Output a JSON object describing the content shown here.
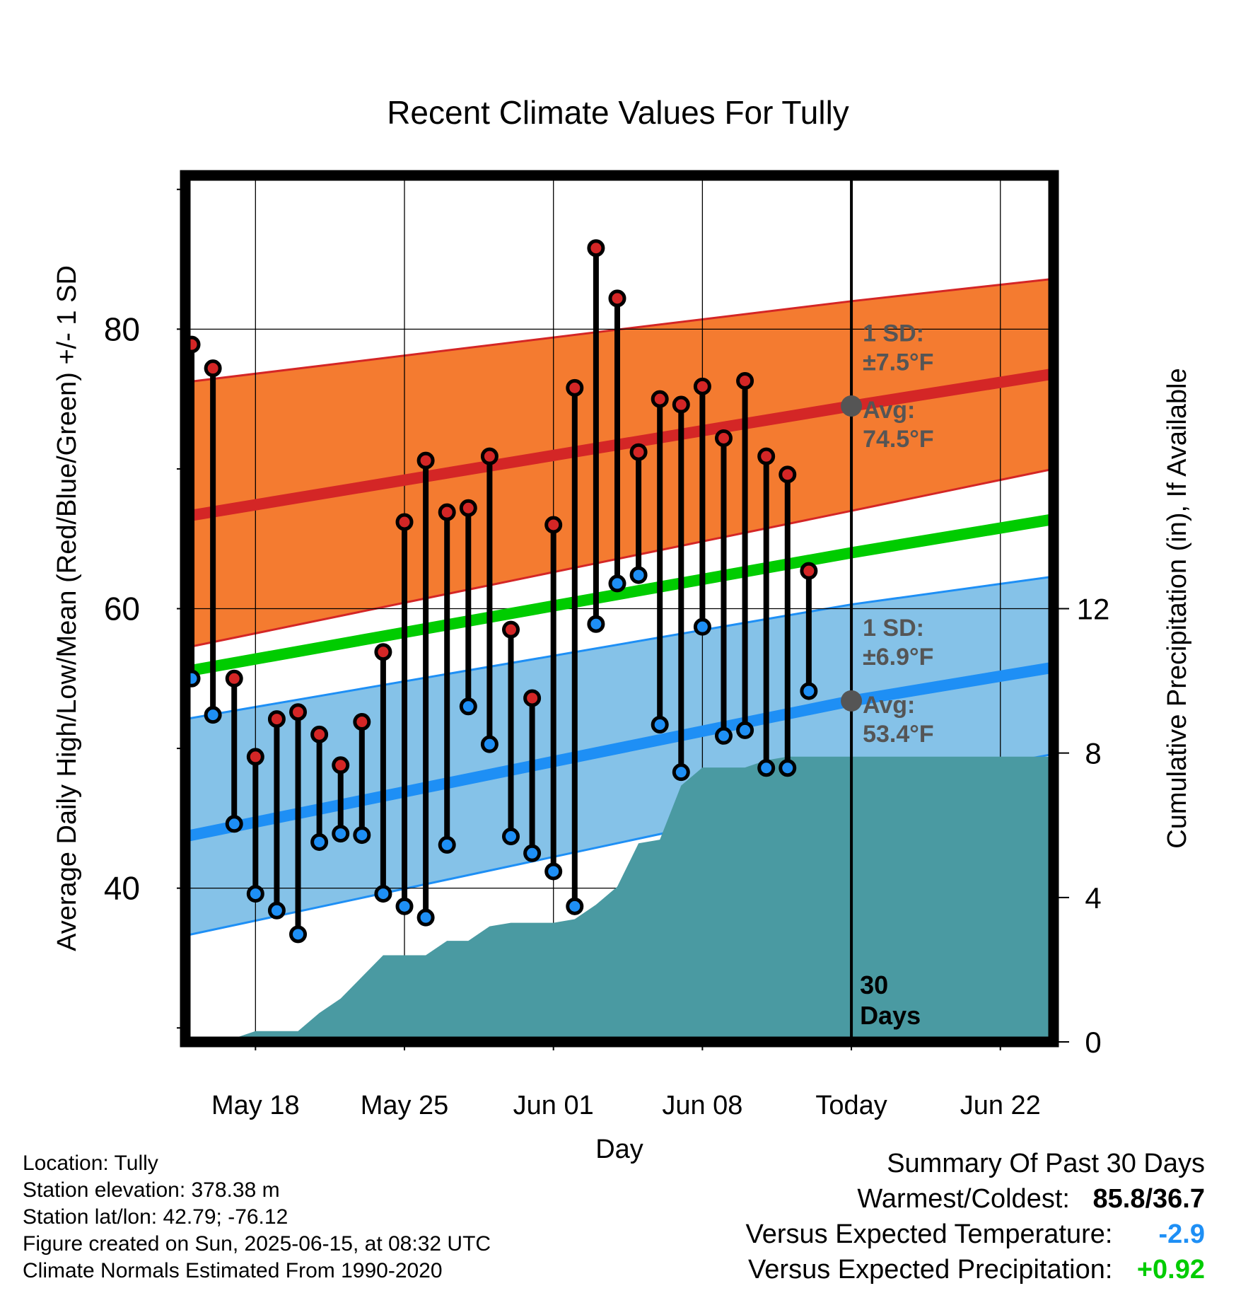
{
  "chart_data": {
    "type": "line",
    "title": "Recent Climate Values For Tully",
    "xlabel": "Day",
    "ylabel": "Average Daily High/Low/Mean (Red/Blue/Green) +/- 1 SD",
    "y2label": "Cumulative Precipitation (in), If Available",
    "ylim": [
      29,
      91
    ],
    "y2lim": [
      0,
      24
    ],
    "yticks": [
      40,
      60,
      80
    ],
    "y2ticks": [
      0,
      4,
      8,
      12
    ],
    "xlim": [
      14.7,
      55.5
    ],
    "x_ticks": [
      {
        "day": 18,
        "label": "May 18"
      },
      {
        "day": 25,
        "label": "May 25"
      },
      {
        "day": 32,
        "label": "Jun 01"
      },
      {
        "day": 39,
        "label": "Jun 08"
      },
      {
        "day": 46,
        "label": "Today"
      },
      {
        "day": 53,
        "label": "Jun 22"
      }
    ],
    "today_day": 46,
    "window_label": [
      "30",
      "Days"
    ],
    "colors": {
      "high_band": "#f47b30",
      "high_line": "#d42626",
      "low_band": "#85c2e8",
      "low_line": "#1e8ff5",
      "mean_line": "#00cc00",
      "precip": "#4a9aa2",
      "high_point": "#d42626",
      "low_point": "#1e8ff5",
      "avg_marker": "#555555",
      "annotation": "#555555"
    },
    "normals": {
      "x": [
        14.7,
        46,
        55.5
      ],
      "high_mean": [
        66.6,
        74.5,
        76.8
      ],
      "high_upper": [
        76.2,
        82.0,
        83.6
      ],
      "high_lower": [
        57.2,
        67.0,
        70.0
      ],
      "low_mean": [
        43.7,
        53.4,
        55.8
      ],
      "low_upper": [
        52.1,
        60.3,
        62.3
      ],
      "low_lower": [
        36.6,
        46.8,
        49.6
      ],
      "mean": [
        55.5,
        64.0,
        66.4
      ]
    },
    "series": [
      {
        "name": "High",
        "x": [
          15,
          16,
          17,
          18,
          19,
          20,
          21,
          22,
          23,
          24,
          25,
          26,
          27,
          28,
          29,
          30,
          31,
          32,
          33,
          34,
          35,
          36,
          37,
          38,
          39,
          40,
          41,
          42,
          43,
          44,
          45
        ],
        "values": [
          78.9,
          77.2,
          55.0,
          49.4,
          52.1,
          52.6,
          51.0,
          48.8,
          51.9,
          56.9,
          66.2,
          70.6,
          66.9,
          67.2,
          70.9,
          58.5,
          53.6,
          66.0,
          75.8,
          85.8,
          82.2,
          71.2,
          75.0,
          74.6,
          75.9,
          72.2,
          76.3,
          70.9,
          69.6,
          62.7,
          null
        ]
      },
      {
        "name": "Low",
        "x": [
          15,
          16,
          17,
          18,
          19,
          20,
          21,
          22,
          23,
          24,
          25,
          26,
          27,
          28,
          29,
          30,
          31,
          32,
          33,
          34,
          35,
          36,
          37,
          38,
          39,
          40,
          41,
          42,
          43,
          44,
          45
        ],
        "values": [
          55.0,
          52.4,
          44.6,
          39.6,
          38.4,
          36.7,
          43.3,
          43.9,
          43.8,
          39.6,
          38.7,
          37.9,
          43.1,
          53.0,
          50.3,
          43.7,
          42.5,
          41.2,
          38.7,
          58.9,
          61.8,
          62.4,
          51.7,
          48.3,
          58.7,
          50.9,
          51.3,
          48.6,
          48.6,
          54.1,
          null
        ]
      },
      {
        "name": "Precip",
        "x": [
          14.7,
          16,
          17,
          18,
          19,
          20,
          21,
          22,
          23,
          24,
          25,
          26,
          27,
          28,
          29,
          30,
          31,
          32,
          33,
          34,
          35,
          36,
          37,
          38,
          39,
          40,
          41,
          42,
          43,
          44,
          55.5
        ],
        "values": [
          0,
          0,
          0.1,
          0.3,
          0.3,
          0.3,
          0.8,
          1.2,
          1.8,
          2.4,
          2.4,
          2.4,
          2.8,
          2.8,
          3.2,
          3.3,
          3.3,
          3.3,
          3.4,
          3.8,
          4.3,
          5.5,
          5.6,
          7.1,
          7.6,
          7.6,
          7.6,
          7.8,
          7.9,
          7.9,
          7.9
        ]
      }
    ],
    "annotations": [
      {
        "lines": [
          "1 SD:",
          "±7.5°F"
        ],
        "y": 80
      },
      {
        "lines": [
          "Avg:",
          "74.5°F"
        ],
        "y": 74.5
      },
      {
        "lines": [
          "1 SD:",
          "±6.9°F"
        ],
        "y": 58.9
      },
      {
        "lines": [
          "Avg:",
          "53.4°F"
        ],
        "y": 53.4
      }
    ]
  },
  "info": {
    "location": "Location: Tully",
    "elevation": "Station elevation: 378.38 m",
    "latlon": "Station lat/lon: 42.79; -76.12",
    "created": "Figure created on Sun, 2025-06-15, at 08:32 UTC",
    "normals": "Climate Normals Estimated From 1990-2020"
  },
  "summary": {
    "heading": "Summary Of Past 30 Days",
    "warm_cold_label": "Warmest/Coldest:",
    "warm_cold_value": "85.8/36.7",
    "temp_label": "Versus Expected Temperature:",
    "temp_value": "-2.9",
    "temp_color": "#1e8ff5",
    "precip_label": "Versus Expected Precipitation:",
    "precip_value": "+0.92",
    "precip_color": "#00cc00"
  }
}
